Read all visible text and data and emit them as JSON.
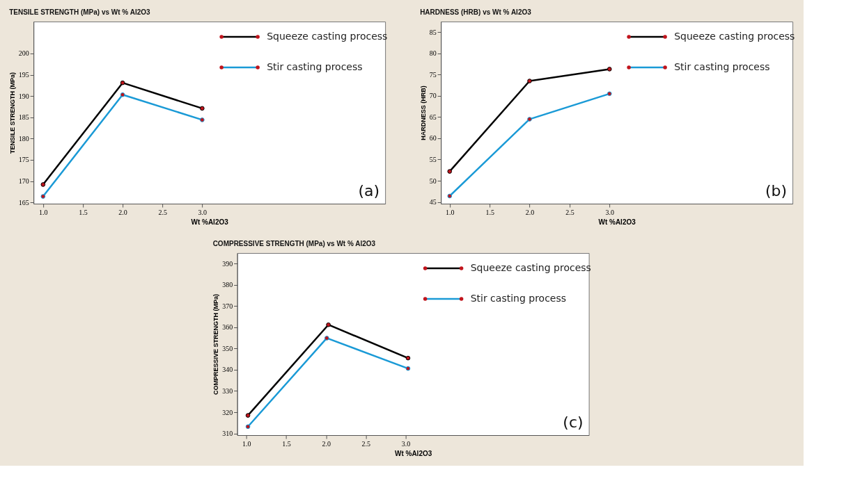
{
  "chart_data": [
    {
      "type": "line",
      "title": "TENSILE STRENGTH (MPa) vs Wt % Al2O3",
      "xlabel": "Wt %Al2O3",
      "ylabel": "TENSILE STRENGTH (MPa)",
      "xlim": [
        0.88,
        5.3
      ],
      "xticks": [
        {
          "value": 1,
          "label": "1.0"
        },
        {
          "value": 1.5,
          "label": "1.5"
        },
        {
          "value": 2,
          "label": "2.0"
        },
        {
          "value": 2.5,
          "label": "2.5"
        },
        {
          "value": 3,
          "label": "3.0"
        }
      ],
      "ylim": [
        164.7,
        207.5
      ],
      "yticks": [
        165,
        170,
        175,
        180,
        185,
        190,
        195,
        200
      ],
      "marker": "circle",
      "legend": "top right",
      "grid": false,
      "annotations": [
        "(a)"
      ],
      "series": [
        {
          "name": "Squeeze casting process",
          "color": "#000000",
          "x": [
            1,
            2,
            3
          ],
          "values": [
            169.2,
            193.1,
            187.1
          ]
        },
        {
          "name": "Stir casting process",
          "color": "#1a9ad6",
          "x": [
            1,
            2,
            3
          ],
          "values": [
            166.4,
            190.3,
            184.4
          ]
        }
      ]
    },
    {
      "type": "line",
      "title": "HARDNESS (HRB) vs Wt % Al2O3",
      "xlabel": "Wt %Al2O3",
      "ylabel": "HARDNESS (HRB)",
      "xlim": [
        0.89,
        5.29
      ],
      "xticks": [
        {
          "value": 1,
          "label": "1.0"
        },
        {
          "value": 1.5,
          "label": "1.5"
        },
        {
          "value": 2,
          "label": "2.0"
        },
        {
          "value": 2.5,
          "label": "2.5"
        },
        {
          "value": 3,
          "label": "3.0"
        }
      ],
      "ylim": [
        44.6,
        87.5
      ],
      "yticks": [
        45,
        50,
        55,
        60,
        65,
        70,
        75,
        80,
        85
      ],
      "marker": "circle",
      "legend": "top right",
      "grid": false,
      "annotations": [
        "(b)"
      ],
      "series": [
        {
          "name": "Squeeze casting process",
          "color": "#000000",
          "x": [
            1,
            2,
            3
          ],
          "values": [
            52.2,
            73.5,
            76.3
          ]
        },
        {
          "name": "Stir casting process",
          "color": "#1a9ad6",
          "x": [
            1,
            2,
            3
          ],
          "values": [
            46.4,
            64.5,
            70.5
          ]
        }
      ]
    },
    {
      "type": "line",
      "title": "COMPRESSIVE STRENGTH (MPa) vs Wt % Al2O3",
      "xlabel": "Wt %Al2O3",
      "ylabel": "COMPRESSIVE STRENGTH (MPa)",
      "xlim": [
        0.885,
        5.3
      ],
      "xticks": [
        {
          "value": 1,
          "label": "1.0"
        },
        {
          "value": 1.5,
          "label": "1.5"
        },
        {
          "value": 2,
          "label": "2.0"
        },
        {
          "value": 2.5,
          "label": "2.5"
        },
        {
          "value": 3,
          "label": "3.0"
        }
      ],
      "ylim": [
        309.2,
        395
      ],
      "yticks": [
        310,
        320,
        330,
        340,
        350,
        360,
        370,
        380,
        390
      ],
      "marker": "circle",
      "legend": "top right",
      "grid": false,
      "annotations": [
        "(c)"
      ],
      "series": [
        {
          "name": "Squeeze casting process",
          "color": "#000000",
          "x": [
            1.02,
            2.03,
            3.03
          ],
          "values": [
            318.5,
            361.2,
            345.5
          ]
        },
        {
          "name": "Stir casting process",
          "color": "#1a9ad6",
          "x": [
            1.02,
            2.01,
            3.03
          ],
          "values": [
            313.2,
            354.9,
            340.6
          ]
        }
      ]
    }
  ]
}
